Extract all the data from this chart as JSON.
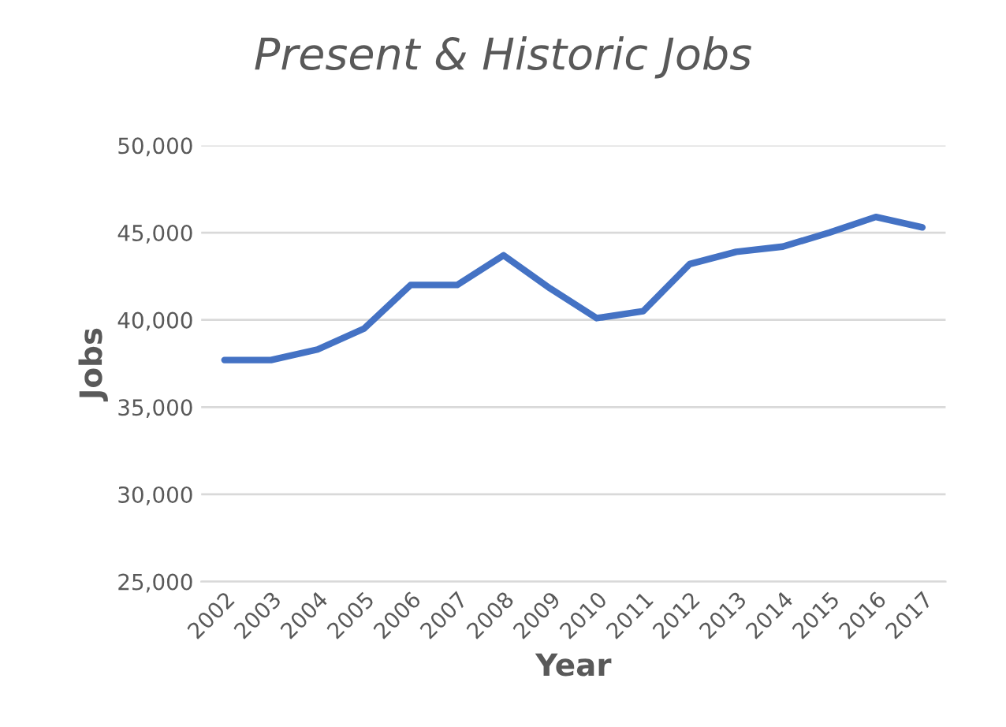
{
  "chart_data": {
    "type": "line",
    "title": "Present & Historic Jobs",
    "xlabel": "Year",
    "ylabel": "Jobs",
    "categories": [
      "2002",
      "2003",
      "2004",
      "2005",
      "2006",
      "2007",
      "2008",
      "2009",
      "2010",
      "2011",
      "2012",
      "2013",
      "2014",
      "2015",
      "2016",
      "2017"
    ],
    "series": [
      {
        "color": "#4472c4",
        "values": [
          37700,
          37700,
          38300,
          39500,
          42000,
          42000,
          43700,
          41800,
          40100,
          40500,
          43200,
          43900,
          44200,
          45000,
          45900,
          45300
        ]
      }
    ],
    "ylim": [
      25000,
      50000
    ],
    "yticks": [
      {
        "value": 25000,
        "label": "25,000"
      },
      {
        "value": 30000,
        "label": "30,000"
      },
      {
        "value": 35000,
        "label": "35,000"
      },
      {
        "value": 40000,
        "label": "40,000"
      },
      {
        "value": 45000,
        "label": "45,000"
      },
      {
        "value": 50000,
        "label": "50,000"
      }
    ],
    "grid": "y",
    "marker": "none",
    "line_style": "solid"
  }
}
